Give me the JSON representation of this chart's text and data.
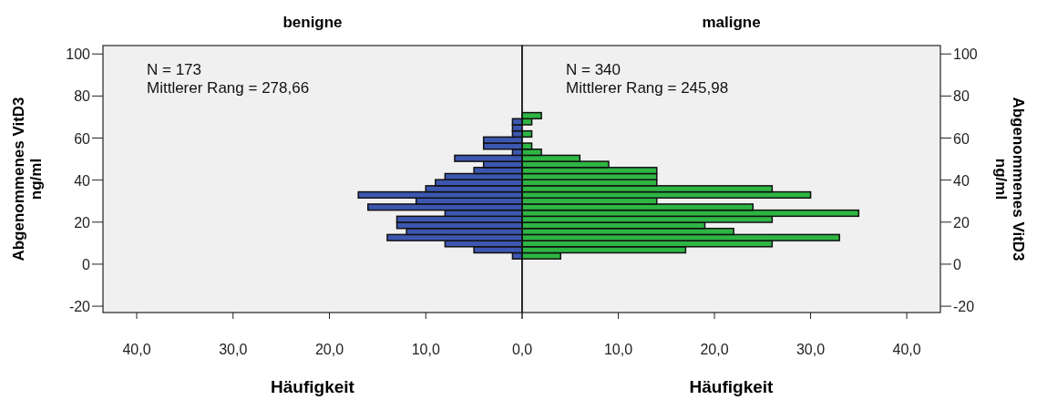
{
  "chart_data": [
    {
      "type": "histogram",
      "title": "benigne",
      "orientation": "horizontal",
      "xlabel": "Häufigkeit",
      "ylabel": "Abgenommenes VitD3 ng/ml",
      "annotations": [
        "N = 173",
        "Mittlerer Rang = 278,66"
      ],
      "bins": [
        2.5,
        5.4,
        8.3,
        11.2,
        14.1,
        17,
        19.9,
        22.8,
        25.7,
        28.6,
        31.5,
        34.4,
        37.3,
        40.2,
        43.1,
        46,
        48.9,
        51.8,
        54.7,
        57.6,
        60.5,
        63.4,
        66.3,
        69.2,
        72.1
      ],
      "values": [
        1,
        5,
        8,
        14,
        12,
        13,
        13,
        8,
        16,
        11,
        17,
        10,
        9,
        8,
        5,
        4,
        7,
        1,
        4,
        4,
        1,
        1,
        1,
        0
      ],
      "color": "#3d57b0",
      "xlim": [
        43.5,
        0
      ],
      "xticks": [
        {
          "value": 40,
          "label": "40,0"
        },
        {
          "value": 30,
          "label": "30,0"
        },
        {
          "value": 20,
          "label": "20,0"
        },
        {
          "value": 10,
          "label": "10,0"
        },
        {
          "value": 0,
          "label": null
        }
      ],
      "ylim": [
        -23,
        104
      ],
      "yticks": [
        -20,
        0,
        20,
        40,
        60,
        80,
        100
      ]
    },
    {
      "type": "histogram",
      "title": "maligne",
      "orientation": "horizontal",
      "xlabel": "Häufigkeit",
      "ylabel": "Abgenommenes VitD3 ng/ml",
      "annotations": [
        "N = 340",
        "Mittlerer Rang = 245,98"
      ],
      "bins": [
        2.5,
        5.4,
        8.3,
        11.2,
        14.1,
        17,
        19.9,
        22.8,
        25.7,
        28.6,
        31.5,
        34.4,
        37.3,
        40.2,
        43.1,
        46,
        48.9,
        51.8,
        54.7,
        57.6,
        60.5,
        63.4,
        66.3,
        69.2,
        72.1
      ],
      "values": [
        4,
        17,
        26,
        33,
        22,
        19,
        26,
        35,
        24,
        14,
        30,
        26,
        14,
        14,
        14,
        9,
        6,
        2,
        1,
        0,
        1,
        0,
        1,
        2
      ],
      "color": "#2eb543",
      "xlim": [
        0,
        43.5
      ],
      "xticks": [
        {
          "value": 0,
          "label": "0,0"
        },
        {
          "value": 10,
          "label": "10,0"
        },
        {
          "value": 20,
          "label": "20,0"
        },
        {
          "value": 30,
          "label": "30,0"
        },
        {
          "value": 40,
          "label": "40,0"
        }
      ],
      "ylim": [
        -23,
        104
      ],
      "yticks": [
        -20,
        0,
        20,
        40,
        60,
        80,
        100
      ]
    }
  ]
}
